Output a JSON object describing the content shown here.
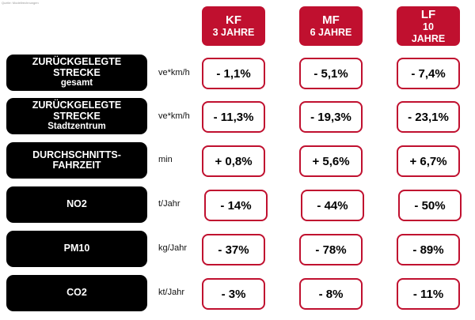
{
  "caption": "Quelle: Modellrechnungen",
  "columns": [
    {
      "line1": "KF",
      "line2": "3 JAHRE",
      "line3": ""
    },
    {
      "line1": "MF",
      "line2": "6 JAHRE",
      "line3": ""
    },
    {
      "line1": "LF",
      "line2": "10",
      "line3": "JAHRE"
    }
  ],
  "rows": [
    {
      "label1": "ZURÜCKGELEGTE",
      "label2": "STRECKE",
      "label3": "gesamt",
      "unit": "ve*km/h",
      "values": [
        "- 1,1%",
        "- 5,1%",
        "- 7,4%"
      ]
    },
    {
      "label1": "ZURÜCKGELEGTE",
      "label2": "STRECKE",
      "label3": "Stadtzentrum",
      "unit": "ve*km/h",
      "values": [
        "- 11,3%",
        "- 19,3%",
        "- 23,1%"
      ]
    },
    {
      "label1": "DURCHSCHNITTS-",
      "label2": "FAHRZEIT",
      "label3": "",
      "unit": "min",
      "values": [
        "+ 0,8%",
        "+ 5,6%",
        "+ 6,7%"
      ]
    },
    {
      "label1": "NO2",
      "label2": "",
      "label3": "",
      "unit": "t/Jahr",
      "values": [
        "- 14%",
        "- 44%",
        "- 50%"
      ]
    },
    {
      "label1": "PM10",
      "label2": "",
      "label3": "",
      "unit": "kg/Jahr",
      "values": [
        "- 37%",
        "- 78%",
        "- 89%"
      ]
    },
    {
      "label1": "CO2",
      "label2": "",
      "label3": "",
      "unit": "kt/Jahr",
      "values": [
        "- 3%",
        "- 8%",
        "- 11%"
      ]
    }
  ],
  "colors": {
    "accent": "#c0102f",
    "label_bg": "#000000"
  }
}
